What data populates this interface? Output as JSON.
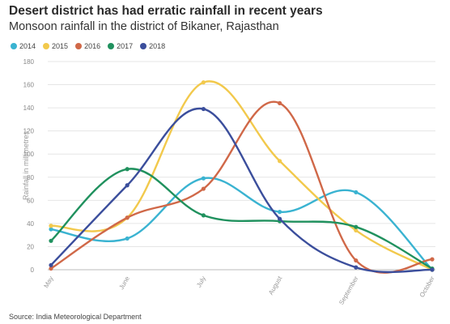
{
  "title": "Desert district has had erratic rainfall in recent years",
  "subtitle": "Monsoon rainfall in the district of Bikaner, Rajasthan",
  "source": "Source: India Meteorological Department",
  "chart_data": {
    "type": "line",
    "categories": [
      "May",
      "June",
      "July",
      "August",
      "September",
      "October"
    ],
    "series": [
      {
        "name": "2014",
        "color": "#3ab3d1",
        "values": [
          35,
          27,
          79,
          50,
          67,
          0
        ]
      },
      {
        "name": "2015",
        "color": "#f2c94c",
        "values": [
          38,
          45,
          162,
          94,
          34,
          0
        ]
      },
      {
        "name": "2016",
        "color": "#d06848",
        "values": [
          1,
          45,
          70,
          144,
          8,
          9
        ]
      },
      {
        "name": "2017",
        "color": "#20915e",
        "values": [
          25,
          87,
          47,
          42,
          37,
          1
        ]
      },
      {
        "name": "2018",
        "color": "#3b4e9c",
        "values": [
          4,
          73,
          139,
          44,
          2,
          0
        ]
      }
    ],
    "xlabel": "",
    "ylabel": "Rainfall in millimetres",
    "ylim": [
      0,
      180
    ],
    "yticks": [
      0,
      20,
      40,
      60,
      80,
      100,
      120,
      140,
      160,
      180
    ],
    "grid": true,
    "legend_position": "top-left"
  }
}
